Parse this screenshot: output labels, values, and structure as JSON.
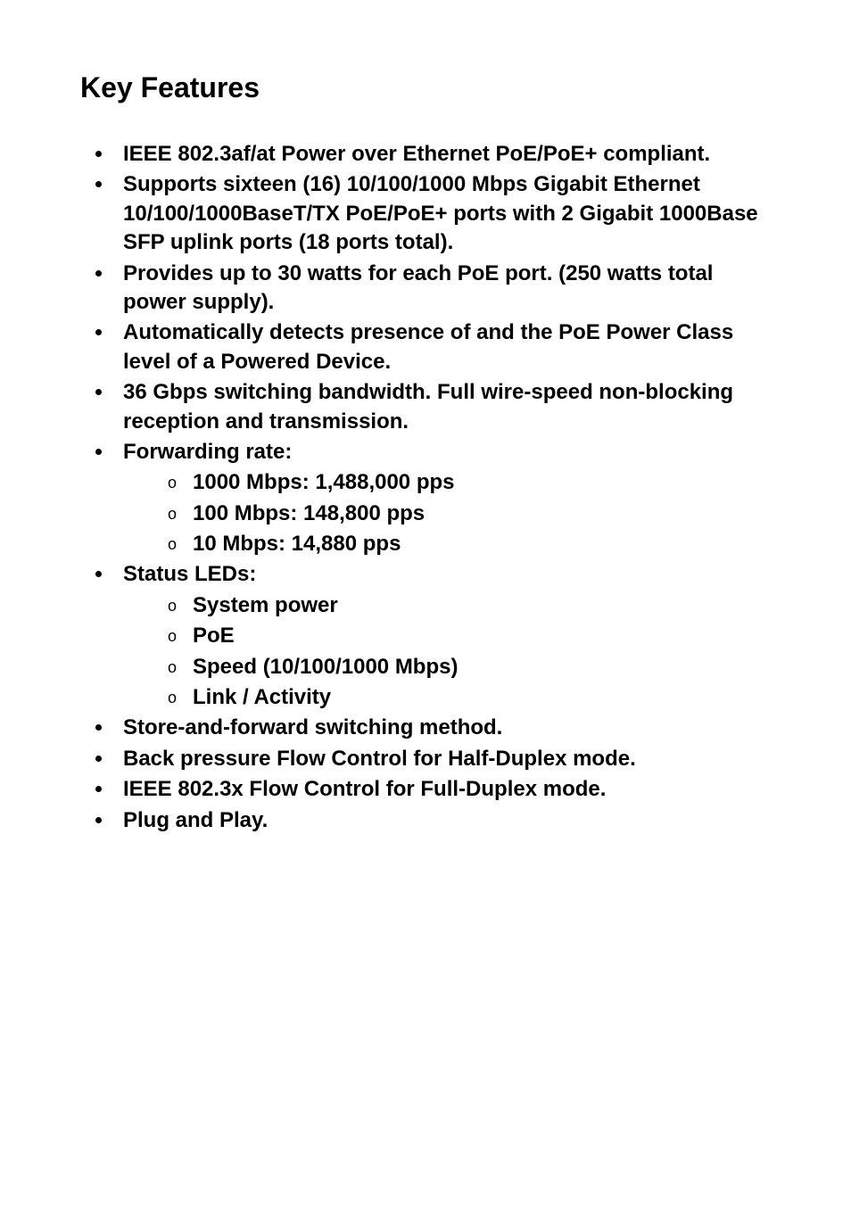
{
  "title": "Key Features",
  "items": [
    {
      "text": "IEEE 802.3af/at Power over Ethernet PoE/PoE+ compliant."
    },
    {
      "text": "Supports sixteen (16) 10/100/1000 Mbps Gigabit Ethernet 10/100/1000BaseT/TX PoE/PoE+ ports with 2 Gigabit 1000Base SFP uplink ports (18 ports total)."
    },
    {
      "text": "Provides up to 30 watts for each PoE port. (250 watts total power supply)."
    },
    {
      "text": "Automatically detects presence of and the PoE Power Class level of a Powered Device."
    },
    {
      "text": "36 Gbps switching bandwidth. Full wire-speed non-blocking reception and transmission."
    },
    {
      "text": "Forwarding rate:",
      "sub": [
        "1000 Mbps: 1,488,000 pps",
        "100 Mbps: 148,800 pps",
        "10 Mbps: 14,880 pps"
      ]
    },
    {
      "text": "Status LEDs:",
      "sub": [
        "System power",
        "PoE",
        "Speed (10/100/1000 Mbps)",
        "Link / Activity"
      ]
    },
    {
      "text": "Store-and-forward switching method."
    },
    {
      "text": "Back pressure Flow Control for Half-Duplex mode."
    },
    {
      "text": "IEEE 802.3x Flow Control for Full-Duplex mode."
    },
    {
      "text": "Plug and Play."
    }
  ]
}
